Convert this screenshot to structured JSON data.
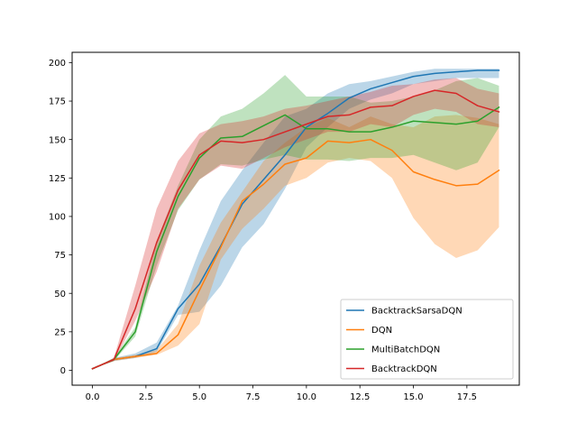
{
  "chart_data": {
    "type": "line",
    "title": "",
    "xlabel": "",
    "ylabel": "",
    "xlim": [
      -0.95,
      19.95
    ],
    "ylim": [
      -9.7,
      206.7
    ],
    "xticks": [
      0,
      2.5,
      5,
      7.5,
      10,
      12.5,
      15,
      17.5
    ],
    "xtick_labels": [
      "0.0",
      "2.5",
      "5.0",
      "7.5",
      "10.0",
      "12.5",
      "15.0",
      "17.5"
    ],
    "yticks": [
      0,
      25,
      50,
      75,
      100,
      125,
      150,
      175,
      200
    ],
    "ytick_labels": [
      "0",
      "25",
      "50",
      "75",
      "100",
      "125",
      "150",
      "175",
      "200"
    ],
    "grid": false,
    "legend_position": "lower-right",
    "x": [
      0,
      1,
      2,
      3,
      4,
      5,
      6,
      7,
      8,
      9,
      10,
      11,
      12,
      13,
      14,
      15,
      16,
      17,
      18,
      19
    ],
    "series": [
      {
        "name": "BacktrackSarsaDQN",
        "color": "#1f77b4",
        "values": [
          1,
          7,
          9,
          14,
          40,
          56,
          81,
          108,
          124,
          140,
          158,
          167,
          177,
          183,
          187,
          191,
          193,
          194,
          195,
          195
        ],
        "lower": [
          1,
          6,
          8,
          12,
          36,
          38,
          55,
          80,
          95,
          118,
          145,
          158,
          170,
          176,
          180,
          186,
          188,
          190,
          190,
          190
        ],
        "upper": [
          1,
          8,
          11,
          18,
          42,
          78,
          110,
          130,
          148,
          165,
          170,
          180,
          186,
          188,
          191,
          194,
          196,
          196,
          196,
          196
        ]
      },
      {
        "name": "DQN",
        "color": "#ff7f0e",
        "values": [
          1,
          7,
          9,
          11,
          23,
          52,
          80,
          110,
          121,
          134,
          138,
          149,
          148,
          150,
          143,
          129,
          124,
          120,
          121,
          130
        ],
        "lower": [
          1,
          6,
          8,
          10,
          16,
          30,
          72,
          92,
          105,
          120,
          125,
          135,
          138,
          136,
          125,
          99,
          82,
          73,
          78,
          93
        ],
        "upper": [
          1,
          8,
          10,
          13,
          30,
          68,
          96,
          116,
          136,
          148,
          158,
          164,
          158,
          165,
          160,
          158,
          165,
          166,
          164,
          160
        ]
      },
      {
        "name": "MultiBatchDQN",
        "color": "#2ca02c",
        "values": [
          1,
          7,
          25,
          77,
          113,
          138,
          151,
          152,
          159,
          166,
          157,
          157,
          155,
          155,
          158,
          162,
          161,
          160,
          162,
          171
        ],
        "lower": [
          1,
          6,
          22,
          68,
          104,
          124,
          134,
          133,
          137,
          140,
          137,
          137,
          136,
          138,
          138,
          140,
          135,
          130,
          135,
          158
        ],
        "upper": [
          1,
          8,
          28,
          84,
          120,
          150,
          165,
          170,
          180,
          192,
          178,
          178,
          178,
          174,
          175,
          178,
          182,
          188,
          190,
          185
        ]
      },
      {
        "name": "BacktrackDQN",
        "color": "#d62728",
        "values": [
          1,
          7,
          40,
          83,
          117,
          140,
          149,
          148,
          150,
          155,
          160,
          165,
          166,
          171,
          172,
          178,
          182,
          180,
          172,
          168
        ],
        "lower": [
          1,
          6,
          32,
          64,
          105,
          124,
          133,
          131,
          138,
          145,
          150,
          155,
          155,
          160,
          158,
          166,
          170,
          168,
          160,
          158
        ],
        "upper": [
          1,
          8,
          55,
          105,
          136,
          154,
          160,
          162,
          165,
          170,
          172,
          175,
          178,
          181,
          185,
          186,
          189,
          190,
          183,
          180
        ]
      }
    ]
  }
}
